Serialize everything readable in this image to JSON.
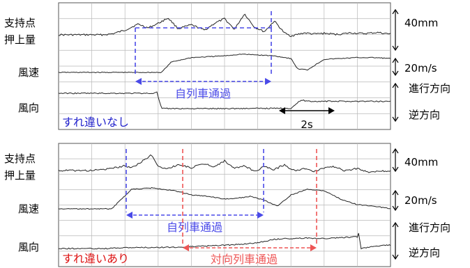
{
  "chart_data": [
    {
      "type": "line",
      "scenario": "すれ違いなし",
      "series": [
        {
          "name": "支持点押上量",
          "x": [
            0.0,
            0.5,
            1.0,
            1.3,
            1.6,
            2.0,
            2.4,
            2.7,
            3.0,
            3.3,
            3.6,
            4.0,
            4.4,
            4.7,
            5.0,
            5.3,
            5.6,
            5.9,
            6.2,
            6.5,
            6.8,
            7.0,
            7.4,
            7.7,
            8.0,
            8.4,
            8.8,
            9.2,
            9.6,
            10.0
          ],
          "values": [
            0,
            0,
            0,
            0,
            2,
            12,
            28,
            18,
            30,
            44,
            16,
            26,
            12,
            30,
            42,
            14,
            55,
            20,
            8,
            36,
            5,
            -3,
            5,
            2,
            4,
            1,
            5,
            3,
            6,
            2
          ]
        },
        {
          "name": "風速",
          "x": [
            0.0,
            2.5,
            3.1,
            3.4,
            4.0,
            4.5,
            5.0,
            5.5,
            6.0,
            6.5,
            7.0,
            7.2,
            7.5,
            8.0,
            8.5,
            9.0,
            9.5,
            10.0
          ],
          "values": [
            0,
            0,
            0,
            12,
            17,
            18,
            19,
            21,
            20,
            19,
            16,
            4,
            3,
            15,
            16,
            17,
            17,
            16
          ]
        },
        {
          "name": "風向",
          "x": [
            0.0,
            2.9,
            2.95,
            3.1,
            3.3,
            5.0,
            7.0,
            7.1,
            7.3,
            7.6,
            8.0,
            9.0,
            10.0
          ],
          "values": [
            1,
            1,
            1.3,
            -1,
            -1,
            -1,
            -0.95,
            -0.6,
            0.1,
            -0.05,
            -0.05,
            -0.05,
            -0.05
          ]
        }
      ],
      "annotation": "自列車通過",
      "scale_labels": [
        "40mm",
        "20m/s"
      ],
      "direction_labels": [
        "進行方向",
        "逆方向"
      ],
      "time_scale": "2s"
    },
    {
      "type": "line",
      "scenario": "すれ違いあり",
      "series": [
        {
          "name": "支持点押上量",
          "x": [
            0.0,
            1.0,
            1.3,
            1.6,
            2.0,
            2.2,
            2.5,
            2.8,
            3.0,
            3.3,
            3.6,
            4.0,
            4.4,
            4.7,
            5.0,
            5.3,
            5.6,
            5.9,
            6.2,
            6.5,
            6.8,
            7.1,
            7.4,
            7.7,
            8.0,
            8.3,
            8.6,
            9.0,
            9.3,
            9.6,
            10.0
          ],
          "values": [
            0,
            0,
            2,
            4,
            10,
            6,
            18,
            32,
            8,
            4,
            12,
            6,
            14,
            8,
            20,
            4,
            10,
            -2,
            8,
            2,
            12,
            0,
            4,
            -2,
            6,
            8,
            0,
            4,
            -3,
            -2,
            0
          ]
        },
        {
          "name": "風速",
          "x": [
            0.0,
            1.6,
            2.2,
            2.8,
            3.5,
            4.0,
            4.5,
            5.0,
            5.5,
            5.8,
            6.2,
            6.6,
            7.0,
            7.5,
            8.0,
            8.5,
            9.0,
            9.5,
            10.0
          ],
          "values": [
            0,
            0,
            14,
            15,
            13,
            10,
            9,
            7,
            8,
            9,
            6,
            2,
            10,
            14,
            13,
            7,
            3,
            2,
            0
          ]
        },
        {
          "name": "風向",
          "x": [
            0.0,
            1.5,
            2.0,
            3.5,
            4.5,
            5.5,
            6.0,
            6.5,
            7.0,
            7.5,
            8.0,
            8.5,
            9.0,
            9.05,
            9.1,
            9.5,
            10.0
          ],
          "values": [
            -1,
            -1,
            -0.9,
            -0.85,
            -0.7,
            -0.5,
            -0.3,
            0.1,
            0.2,
            0.25,
            0.2,
            0.3,
            0.4,
            1.0,
            -1,
            -0.7,
            -0.6
          ]
        }
      ],
      "annotations": [
        "自列車通過",
        "対向列車通過"
      ],
      "scale_labels": [
        "40mm",
        "20m/s"
      ],
      "direction_labels": [
        "進行方向",
        "逆方向"
      ]
    }
  ],
  "labels": {
    "disp": "支持点\n押上量",
    "speed": "風速",
    "dir": "風向",
    "s40": "40mm",
    "s20": "20m/s",
    "fwd": "進行方向",
    "rev": "逆方向",
    "own": "自列車通過",
    "opp": "対向列車通過",
    "none": "すれ違いなし",
    "with": "すれ違いあり",
    "time": "2s"
  },
  "colors": {
    "own": "#4a4ae8",
    "opp": "#ee5555",
    "none_label": "#2222cc",
    "with_label": "#dd1111",
    "trace": "#222222",
    "grid": "#b8b8b8"
  }
}
